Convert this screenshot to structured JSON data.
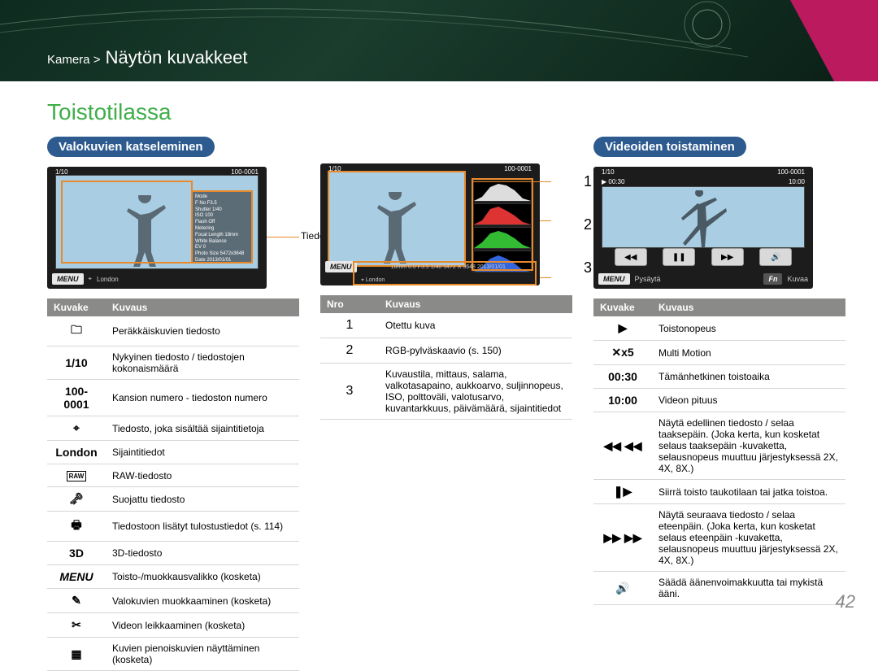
{
  "colors": {
    "accent_green": "#3fae49",
    "accent_magenta": "#bb1a5e",
    "pill_blue": "#2d5a8f",
    "callout_orange": "#e88a2a",
    "header_dark": "#0e2b1f",
    "table_header_bg": "#8a8a88",
    "row_border": "#d6d6d4",
    "sky": "#a9cde3"
  },
  "breadcrumb": {
    "prefix": "Kamera >",
    "main": "Näytön kuvakkeet"
  },
  "page_title": "Toistotilassa",
  "page_number": "42",
  "photo_section": {
    "heading": "Valokuvien katseleminen",
    "screen": {
      "counter": "1/10",
      "file_no": "100-0001",
      "location": "London",
      "menu": "MENU",
      "info_lines": [
        "Mode",
        "F No F3.5",
        "Shutter 1/40",
        "ISO 100",
        "Flash Off",
        "Metering",
        "Focal Length 18mm",
        "White Balance",
        "EV 0",
        "Photo Size 5472x3648",
        "Date 2013/01/01"
      ]
    },
    "callout_label": "Tiedot",
    "table": {
      "headers": [
        "Kuvake",
        "Kuvaus"
      ],
      "rows": [
        {
          "icon": "folder-icon",
          "glyph": "🗀",
          "desc": "Peräkkäiskuvien tiedosto"
        },
        {
          "icon": "counter-text",
          "glyph": "1/10",
          "desc": "Nykyinen tiedosto / tiedostojen kokonaismäärä"
        },
        {
          "icon": "fileno-text",
          "glyph": "100-0001",
          "desc": "Kansion numero - tiedoston numero"
        },
        {
          "icon": "gps-icon",
          "glyph": "⌖",
          "desc": "Tiedosto, joka sisältää sijaintitietoja"
        },
        {
          "icon": "location-text",
          "glyph": "London",
          "desc": "Sijaintitiedot"
        },
        {
          "icon": "raw-icon",
          "glyph": "RAW",
          "desc": "RAW-tiedosto"
        },
        {
          "icon": "lock-icon",
          "glyph": "🗝",
          "desc": "Suojattu tiedosto"
        },
        {
          "icon": "print-icon",
          "glyph": "🖶",
          "desc": "Tiedostoon lisätyt tulostustiedot (s. 114)"
        },
        {
          "icon": "3d-icon",
          "glyph": "3D",
          "desc": "3D-tiedosto"
        },
        {
          "icon": "menu-text",
          "glyph": "MENU",
          "desc": "Toisto-/muokkausvalikko (kosketa)"
        },
        {
          "icon": "edit-icon",
          "glyph": "✎",
          "desc": "Valokuvien muokkaaminen (kosketa)"
        },
        {
          "icon": "trim-icon",
          "glyph": "✂",
          "desc": "Videon leikkaaminen (kosketa)"
        },
        {
          "icon": "thumbs-icon",
          "glyph": "▦",
          "desc": "Kuvien pienoiskuvien näyttäminen (kosketa)"
        }
      ]
    }
  },
  "middle_section": {
    "screen": {
      "counter": "1/10",
      "file_no": "100-0001",
      "menu": "MENU",
      "bottom_info": "18mm   0.0   F3.5   1/40   5472 X 3648   2013/01/01",
      "location": "London"
    },
    "numbers": [
      "1",
      "2",
      "3"
    ],
    "table": {
      "headers": [
        "Nro",
        "Kuvaus"
      ],
      "rows": [
        {
          "n": "1",
          "desc": "Otettu kuva"
        },
        {
          "n": "2",
          "desc": "RGB-pylväskaavio (s. 150)"
        },
        {
          "n": "3",
          "desc": "Kuvaustila, mittaus, salama, valkotasapaino, aukkoarvo, suljinnopeus, ISO, polttoväli, valotusarvo, kuvantarkkuus, päivämäärä, sijaintitiedot"
        }
      ]
    }
  },
  "video_section": {
    "heading": "Videoiden toistaminen",
    "screen": {
      "counter": "1/10",
      "file_no": "100-0001",
      "elapsed": "00:30",
      "total": "10:00",
      "menu": "MENU",
      "pause_label": "Pysäytä",
      "fn": "Fn",
      "capture_label": "Kuvaa"
    },
    "table": {
      "headers": [
        "Kuvake",
        "Kuvaus"
      ],
      "rows": [
        {
          "icon": "speed-icon",
          "glyph": "▶",
          "desc": "Toistonopeus"
        },
        {
          "icon": "multimotion-icon",
          "glyph": "✕x5",
          "desc": "Multi Motion"
        },
        {
          "icon": "elapsed-text",
          "glyph": "00:30",
          "desc": "Tämänhetkinen toistoaika"
        },
        {
          "icon": "total-text",
          "glyph": "10:00",
          "desc": "Videon pituus"
        },
        {
          "icon": "rewind-icon",
          "glyph": "◀◀ ◀◀",
          "desc": "Näytä edellinen tiedosto / selaa taaksepäin. (Joka kerta, kun kosketat selaus taaksepäin -kuvaketta, selausnopeus muuttuu järjestyksessä 2X, 4X, 8X.)"
        },
        {
          "icon": "playpause-icon",
          "glyph": "❚▶",
          "desc": "Siirrä toisto taukotilaan tai jatka toistoa."
        },
        {
          "icon": "forward-icon",
          "glyph": "▶▶ ▶▶",
          "desc": "Näytä seuraava tiedosto / selaa eteenpäin. (Joka kerta, kun kosketat selaus eteenpäin -kuvaketta, selausnopeus muuttuu järjestyksessä 2X, 4X, 8X.)"
        },
        {
          "icon": "volume-icon",
          "glyph": "🔊",
          "desc": "Säädä äänenvoimakkuutta tai mykistä ääni."
        }
      ]
    }
  }
}
